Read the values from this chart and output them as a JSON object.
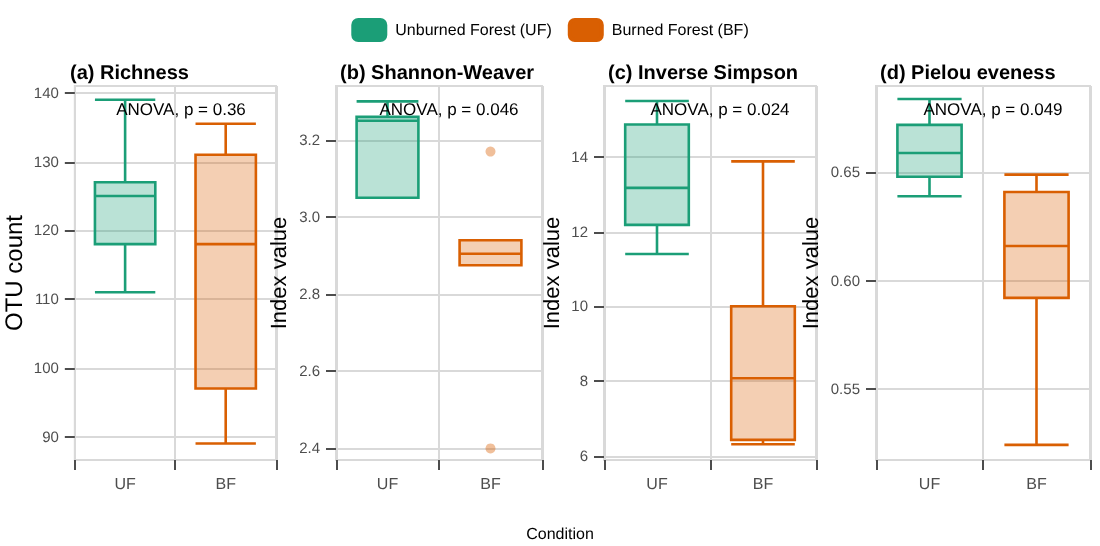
{
  "chart_data": [
    {
      "type": "box",
      "title": "(a) Richness",
      "ylabel": "OTU count",
      "annotations": [
        "ANOVA, p = 0.36"
      ],
      "categories": [
        "UF",
        "BF"
      ],
      "ylim": [
        86.6,
        141
      ],
      "yticks": [
        90,
        100,
        110,
        120,
        130,
        140
      ],
      "grid": true,
      "legend": "top",
      "series": [
        {
          "name": "Unburned Forest (UF)",
          "color": "#1b9e77",
          "boxes": [
            {
              "low": 111,
              "q1": 118,
              "median": 125,
              "q3": 127,
              "high": 139
            },
            null
          ]
        },
        {
          "name": "Burned Forest (BF)",
          "color": "#d95f02",
          "boxes": [
            null,
            {
              "low": 89,
              "q1": 97,
              "median": 118,
              "q3": 131,
              "high": 135.5
            }
          ]
        }
      ]
    },
    {
      "type": "box",
      "title": "(b) Shannon-Weaver",
      "ylabel": "Index value",
      "xlabel": "Condition",
      "annotations": [
        "ANOVA, p = 0.046"
      ],
      "categories": [
        "UF",
        "BF"
      ],
      "ylim": [
        2.37,
        3.34
      ],
      "yticks": [
        2.4,
        2.6,
        2.8,
        {
          "value": 3,
          "label": "3.0"
        },
        3.2
      ],
      "grid": true,
      "series": [
        {
          "color": "#1b9e77",
          "boxes": [
            {
              "low": 3.05,
              "q1": 3.05,
              "median": 3.25,
              "q3": 3.26,
              "high": 3.3
            },
            null
          ]
        },
        {
          "color": "#d95f02",
          "boxes": [
            null,
            {
              "low": 2.875,
              "q1": 2.875,
              "median": 2.905,
              "q3": 2.94,
              "high": 2.94,
              "outliers": [
                3.17,
                2.4
              ]
            }
          ]
        }
      ]
    },
    {
      "type": "box",
      "title": "(c) Inverse Simpson",
      "ylabel": "Index value",
      "annotations": [
        "ANOVA, p = 0.024"
      ],
      "categories": [
        "UF",
        "BF"
      ],
      "ylim": [
        5.88,
        15.9
      ],
      "yticks": [
        6,
        8,
        10,
        12,
        14
      ],
      "grid": true,
      "series": [
        {
          "color": "#1b9e77",
          "boxes": [
            {
              "low": 11.4,
              "q1": 12.18,
              "median": 13.17,
              "q3": 14.87,
              "high": 15.5
            },
            null
          ]
        },
        {
          "color": "#d95f02",
          "boxes": [
            null,
            {
              "low": 6.3,
              "q1": 6.42,
              "median": 8.07,
              "q3": 10,
              "high": 13.88
            }
          ]
        }
      ]
    },
    {
      "type": "box",
      "title": "(d) Pielou eveness",
      "ylabel": "Index value",
      "annotations": [
        "ANOVA, p = 0.049"
      ],
      "categories": [
        "UF",
        "BF"
      ],
      "ylim": [
        0.517,
        0.69
      ],
      "yticks": [
        0.55,
        {
          "value": 0.6,
          "label": "0.60"
        },
        0.65
      ],
      "grid": true,
      "series": [
        {
          "color": "#1b9e77",
          "boxes": [
            {
              "low": 0.639,
              "q1": 0.648,
              "median": 0.659,
              "q3": 0.672,
              "high": 0.684
            },
            null
          ]
        },
        {
          "color": "#d95f02",
          "boxes": [
            null,
            {
              "low": 0.524,
              "q1": 0.592,
              "median": 0.616,
              "q3": 0.641,
              "high": 0.649
            }
          ]
        }
      ]
    }
  ]
}
